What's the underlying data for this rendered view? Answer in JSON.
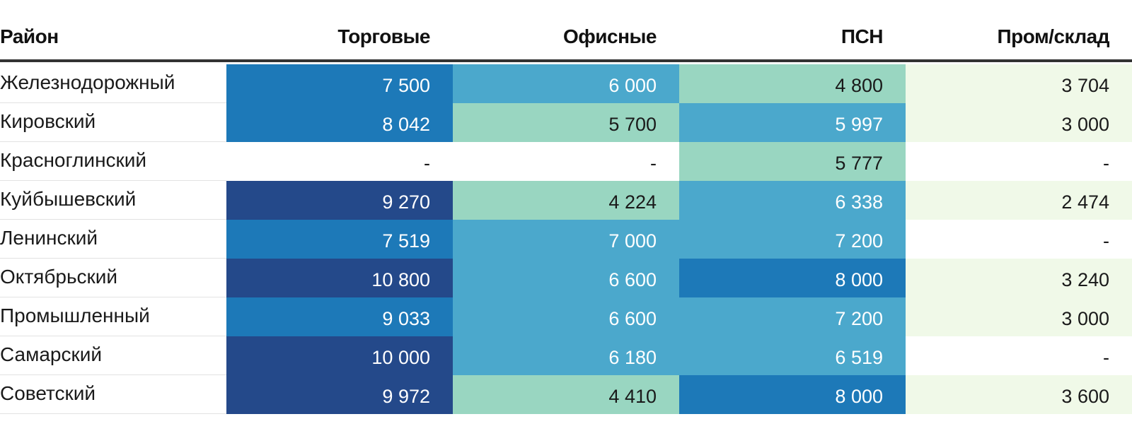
{
  "chart_data": {
    "type": "table",
    "title": "",
    "columns": [
      "Район",
      "Торговые",
      "Офисные",
      "ПСН",
      "Пром/склад"
    ],
    "rows": [
      {
        "district": "Железнодорожный",
        "values": [
          "7 500",
          "6 000",
          "4 800",
          "3 704"
        ],
        "levels": [
          3,
          2,
          1,
          0
        ]
      },
      {
        "district": "Кировский",
        "values": [
          "8 042",
          "5 700",
          "5 997",
          "3 000"
        ],
        "levels": [
          3,
          1,
          2,
          0
        ]
      },
      {
        "district": "Красноглинский",
        "values": [
          "-",
          "-",
          "5 777",
          "-"
        ],
        "levels": [
          -1,
          -1,
          1,
          -1
        ]
      },
      {
        "district": "Куйбышевский",
        "values": [
          "9 270",
          "4 224",
          "6 338",
          "2 474"
        ],
        "levels": [
          4,
          1,
          2,
          0
        ]
      },
      {
        "district": "Ленинский",
        "values": [
          "7 519",
          "7 000",
          "7 200",
          "-"
        ],
        "levels": [
          3,
          2,
          2,
          -1
        ]
      },
      {
        "district": "Октябрьский",
        "values": [
          "10 800",
          "6 600",
          "8 000",
          "3 240"
        ],
        "levels": [
          4,
          2,
          3,
          0
        ]
      },
      {
        "district": "Промышленный",
        "values": [
          "9 033",
          "6 600",
          "7 200",
          "3 000"
        ],
        "levels": [
          3,
          2,
          2,
          0
        ]
      },
      {
        "district": "Самарский",
        "values": [
          "10 000",
          "6 180",
          "6 519",
          "-"
        ],
        "levels": [
          4,
          2,
          2,
          -1
        ]
      },
      {
        "district": "Советский",
        "values": [
          "9 972",
          "4 410",
          "8 000",
          "3 600"
        ],
        "levels": [
          4,
          1,
          3,
          0
        ]
      }
    ],
    "color_scale": [
      "#f0f9e8",
      "#99d6c1",
      "#4ba8cc",
      "#1d79b8",
      "#24498a"
    ],
    "empty_color": "#ffffff",
    "text_colors": {
      "dark": "#1a1a1a",
      "light": "#ffffff"
    }
  }
}
